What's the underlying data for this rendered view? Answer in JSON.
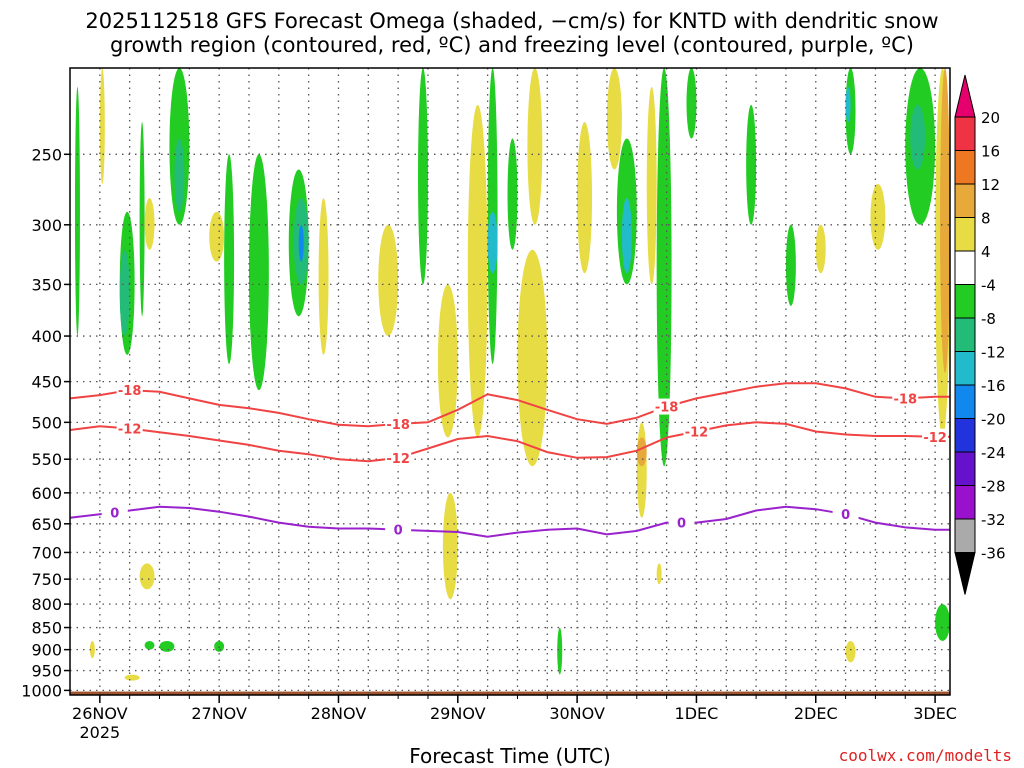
{
  "title": {
    "line1": "2025112518 GFS Forecast Omega (shaded, −cm/s) for KNTD with dendritic snow",
    "line2": "growth region (contoured, red, ºC) and freezing level (contoured, purple, ºC)"
  },
  "credit": "coolwx.com/modelts",
  "chart_data": {
    "type": "heatmap",
    "title": "2025112518 GFS Forecast Omega (shaded, −cm/s) for KNTD with dendritic snow growth region (contoured, red, ºC) and freezing level (contoured, purple, ºC)",
    "xlabel": "Forecast Time (UTC)",
    "ylabel": "",
    "x_ticks": [
      "26NOV\n2025",
      "27NOV",
      "28NOV",
      "29NOV",
      "30NOV",
      "1DEC",
      "2DEC",
      "3DEC"
    ],
    "x_tick_labels": [
      {
        "line1": "26NOV",
        "line2": "2025"
      },
      {
        "line1": "27NOV",
        "line2": ""
      },
      {
        "line1": "28NOV",
        "line2": ""
      },
      {
        "line1": "29NOV",
        "line2": ""
      },
      {
        "line1": "30NOV",
        "line2": ""
      },
      {
        "line1": "1DEC",
        "line2": ""
      },
      {
        "line1": "2DEC",
        "line2": ""
      },
      {
        "line1": "3DEC",
        "line2": ""
      }
    ],
    "xlim_hours": [
      -6,
      171
    ],
    "y_ticks_hpa": [
      250,
      300,
      350,
      400,
      450,
      500,
      550,
      600,
      650,
      700,
      750,
      800,
      850,
      900,
      950,
      1000
    ],
    "ylim_hpa": [
      200,
      1012
    ],
    "y_scale": "log-pressure",
    "grid": true,
    "colorbar": {
      "labels": [
        "20",
        "16",
        "12",
        "8",
        "4",
        "-4",
        "-8",
        "-12",
        "-16",
        "-20",
        "-24",
        "-28",
        "-32",
        "-36"
      ],
      "bins": [
        {
          "range": "16 to 20",
          "color": "#ee3344"
        },
        {
          "range": "12 to 16",
          "color": "#ee7722"
        },
        {
          "range": "8 to 12",
          "color": "#e6a93a"
        },
        {
          "range": "4 to 8",
          "color": "#e8dc44"
        },
        {
          "range": "-4 to 4",
          "color": "#ffffff"
        },
        {
          "range": "-8 to -4",
          "color": "#22cc22"
        },
        {
          "range": "-12 to -8",
          "color": "#22bb77"
        },
        {
          "range": "-16 to -12",
          "color": "#22bbcc"
        },
        {
          "range": "-20 to -16",
          "color": "#1188ee"
        },
        {
          "range": "-24 to -20",
          "color": "#2233dd"
        },
        {
          "range": "-28 to -24",
          "color": "#6611cc"
        },
        {
          "range": "-32 to -28",
          "color": "#9911cc"
        },
        {
          "range": "-36 to -32",
          "color": "#aaaaaa"
        }
      ],
      "top_arrow_color": "#e6006e",
      "bottom_arrow_color": "#000000"
    },
    "contours": [
      {
        "name": "-18",
        "color": "#f04444",
        "label_hours": [
          6,
          60,
          114,
          162
        ],
        "x_hours": [
          -6,
          0,
          6,
          12,
          18,
          24,
          30,
          36,
          42,
          48,
          54,
          60,
          66,
          72,
          78,
          84,
          90,
          96,
          102,
          108,
          114,
          120,
          126,
          132,
          138,
          144,
          150,
          156,
          162,
          168,
          171
        ],
        "p_hpa": [
          470,
          466,
          460,
          462,
          470,
          478,
          482,
          488,
          496,
          503,
          505,
          502,
          500,
          484,
          465,
          472,
          484,
          496,
          502,
          494,
          480,
          470,
          463,
          456,
          452,
          452,
          458,
          468,
          470,
          468,
          468
        ]
      },
      {
        "name": "-12",
        "color": "#f04444",
        "label_hours": [
          6,
          60,
          120,
          168
        ],
        "x_hours": [
          -6,
          0,
          6,
          12,
          18,
          24,
          30,
          36,
          42,
          48,
          54,
          60,
          66,
          72,
          78,
          84,
          90,
          96,
          102,
          108,
          114,
          120,
          126,
          132,
          138,
          144,
          150,
          156,
          162,
          168,
          171
        ],
        "p_hpa": [
          510,
          505,
          508,
          513,
          518,
          524,
          530,
          538,
          543,
          550,
          553,
          548,
          535,
          522,
          518,
          525,
          540,
          548,
          547,
          538,
          520,
          512,
          504,
          500,
          502,
          512,
          516,
          518,
          518,
          519,
          519
        ]
      },
      {
        "name": "0",
        "color": "#9922cc",
        "label_hours": [
          3,
          60,
          117,
          150
        ],
        "x_hours": [
          -6,
          0,
          6,
          12,
          18,
          24,
          30,
          36,
          42,
          48,
          54,
          60,
          66,
          72,
          78,
          84,
          90,
          96,
          102,
          108,
          114,
          120,
          126,
          132,
          138,
          144,
          150,
          156,
          162,
          168,
          171
        ],
        "p_hpa": [
          640,
          634,
          628,
          622,
          624,
          630,
          638,
          648,
          655,
          658,
          658,
          660,
          662,
          664,
          672,
          665,
          660,
          658,
          668,
          662,
          648,
          648,
          642,
          628,
          622,
          626,
          634,
          648,
          656,
          660,
          660
        ]
      }
    ],
    "omega_features": [
      {
        "t_hours": [
          -5,
          -4
        ],
        "p_hpa": [
          210,
          400
        ],
        "value": -6
      },
      {
        "t_hours": [
          0,
          1
        ],
        "p_hpa": [
          200,
          270
        ],
        "value": 6
      },
      {
        "t_hours": [
          4,
          7
        ],
        "p_hpa": [
          290,
          420
        ],
        "value": -6
      },
      {
        "t_hours": [
          4,
          6
        ],
        "p_hpa": [
          320,
          400
        ],
        "value": -10
      },
      {
        "t_hours": [
          8,
          9
        ],
        "p_hpa": [
          230,
          380
        ],
        "value": -6
      },
      {
        "t_hours": [
          9,
          11
        ],
        "p_hpa": [
          280,
          320
        ],
        "value": 6
      },
      {
        "t_hours": [
          8,
          11
        ],
        "p_hpa": [
          720,
          770
        ],
        "value": 6
      },
      {
        "t_hours": [
          14,
          18
        ],
        "p_hpa": [
          200,
          300
        ],
        "value": -6
      },
      {
        "t_hours": [
          15,
          17
        ],
        "p_hpa": [
          240,
          290
        ],
        "value": -10
      },
      {
        "t_hours": [
          25,
          27
        ],
        "p_hpa": [
          250,
          430
        ],
        "value": -6
      },
      {
        "t_hours": [
          22,
          25
        ],
        "p_hpa": [
          290,
          330
        ],
        "value": 6
      },
      {
        "t_hours": [
          30,
          34
        ],
        "p_hpa": [
          250,
          460
        ],
        "value": -6
      },
      {
        "t_hours": [
          38,
          42
        ],
        "p_hpa": [
          260,
          380
        ],
        "value": -6
      },
      {
        "t_hours": [
          39,
          42
        ],
        "p_hpa": [
          280,
          350
        ],
        "value": -10
      },
      {
        "t_hours": [
          40,
          41
        ],
        "p_hpa": [
          300,
          330
        ],
        "value": -18
      },
      {
        "t_hours": [
          44,
          46
        ],
        "p_hpa": [
          280,
          420
        ],
        "value": 6
      },
      {
        "t_hours": [
          56,
          60
        ],
        "p_hpa": [
          300,
          400
        ],
        "value": 6
      },
      {
        "t_hours": [
          64,
          66
        ],
        "p_hpa": [
          200,
          350
        ],
        "value": -6
      },
      {
        "t_hours": [
          68,
          72
        ],
        "p_hpa": [
          350,
          520
        ],
        "value": 6
      },
      {
        "t_hours": [
          69,
          72
        ],
        "p_hpa": [
          600,
          790
        ],
        "value": 6
      },
      {
        "t_hours": [
          74,
          78
        ],
        "p_hpa": [
          220,
          520
        ],
        "value": 6
      },
      {
        "t_hours": [
          78,
          80
        ],
        "p_hpa": [
          200,
          430
        ],
        "value": -6
      },
      {
        "t_hours": [
          78,
          80
        ],
        "p_hpa": [
          290,
          340
        ],
        "value": -12
      },
      {
        "t_hours": [
          82,
          84
        ],
        "p_hpa": [
          240,
          320
        ],
        "value": -6
      },
      {
        "t_hours": [
          84,
          90
        ],
        "p_hpa": [
          320,
          560
        ],
        "value": 6
      },
      {
        "t_hours": [
          86,
          89
        ],
        "p_hpa": [
          200,
          300
        ],
        "value": 6
      },
      {
        "t_hours": [
          96,
          99
        ],
        "p_hpa": [
          230,
          340
        ],
        "value": 6
      },
      {
        "t_hours": [
          102,
          105
        ],
        "p_hpa": [
          200,
          260
        ],
        "value": 6
      },
      {
        "t_hours": [
          104,
          108
        ],
        "p_hpa": [
          240,
          350
        ],
        "value": -6
      },
      {
        "t_hours": [
          105,
          107
        ],
        "p_hpa": [
          280,
          340
        ],
        "value": -12
      },
      {
        "t_hours": [
          108,
          110
        ],
        "p_hpa": [
          500,
          640
        ],
        "value": 6
      },
      {
        "t_hours": [
          108,
          110
        ],
        "p_hpa": [
          520,
          560
        ],
        "value": 10
      },
      {
        "t_hours": [
          112,
          115
        ],
        "p_hpa": [
          200,
          560
        ],
        "value": -6
      },
      {
        "t_hours": [
          110,
          112
        ],
        "p_hpa": [
          210,
          350
        ],
        "value": 6
      },
      {
        "t_hours": [
          118,
          120
        ],
        "p_hpa": [
          200,
          240
        ],
        "value": -6
      },
      {
        "t_hours": [
          130,
          132
        ],
        "p_hpa": [
          220,
          300
        ],
        "value": -6
      },
      {
        "t_hours": [
          138,
          140
        ],
        "p_hpa": [
          300,
          370
        ],
        "value": -6
      },
      {
        "t_hours": [
          144,
          146
        ],
        "p_hpa": [
          300,
          340
        ],
        "value": 6
      },
      {
        "t_hours": [
          150,
          152
        ],
        "p_hpa": [
          200,
          250
        ],
        "value": -6
      },
      {
        "t_hours": [
          150,
          151
        ],
        "p_hpa": [
          210,
          230
        ],
        "value": -12
      },
      {
        "t_hours": [
          155,
          158
        ],
        "p_hpa": [
          270,
          320
        ],
        "value": 6
      },
      {
        "t_hours": [
          162,
          168
        ],
        "p_hpa": [
          200,
          300
        ],
        "value": -6
      },
      {
        "t_hours": [
          163,
          166
        ],
        "p_hpa": [
          220,
          260
        ],
        "value": -10
      },
      {
        "t_hours": [
          168,
          171
        ],
        "p_hpa": [
          200,
          520
        ],
        "value": 6
      },
      {
        "t_hours": [
          169,
          171
        ],
        "p_hpa": [
          200,
          440
        ],
        "value": 10
      },
      {
        "t_hours": [
          168,
          171
        ],
        "p_hpa": [
          800,
          880
        ],
        "value": -6
      },
      {
        "t_hours": [
          150,
          152
        ],
        "p_hpa": [
          880,
          930
        ],
        "value": 6
      },
      {
        "t_hours": [
          112,
          113
        ],
        "p_hpa": [
          720,
          760
        ],
        "value": 6
      },
      {
        "t_hours": [
          9,
          11
        ],
        "p_hpa": [
          880,
          900
        ],
        "value": -6
      },
      {
        "t_hours": [
          12,
          15
        ],
        "p_hpa": [
          880,
          905
        ],
        "value": -6
      },
      {
        "t_hours": [
          23,
          25
        ],
        "p_hpa": [
          880,
          905
        ],
        "value": -6
      },
      {
        "t_hours": [
          92,
          93
        ],
        "p_hpa": [
          850,
          960
        ],
        "value": -6
      },
      {
        "t_hours": [
          -2,
          -1
        ],
        "p_hpa": [
          880,
          920
        ],
        "value": 6
      },
      {
        "t_hours": [
          5,
          8
        ],
        "p_hpa": [
          960,
          975
        ],
        "value": 6
      }
    ],
    "surface": {
      "p_hpa": 1003,
      "color": "#a0522d"
    }
  },
  "colors": {
    "grid": "#555555",
    "surface": "#a0522d",
    "credit": "#dd2222"
  }
}
